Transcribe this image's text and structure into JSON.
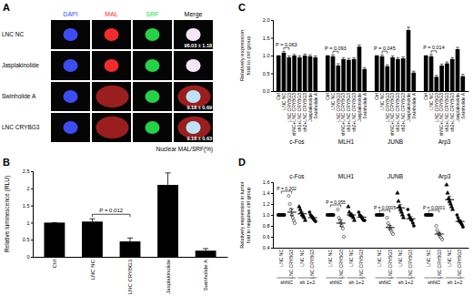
{
  "panel_a": {
    "title": "A",
    "columns": [
      "DAPI",
      "MAL",
      "SRF",
      "Merge"
    ],
    "colors": [
      "#3a4dff",
      "#ff2a2a",
      "#22dd44",
      "#000000"
    ],
    "rows": [
      "LNC NC",
      "Jasplakinolide",
      "Swinholide A",
      "LNC CRYBG3"
    ],
    "annotations": [
      {
        "row": "LNC NC",
        "text": "96.03 ± 1.18"
      },
      {
        "row": "Swinholide A",
        "text": "9.18 ± 0.69"
      },
      {
        "row": "LNC CRYBG3",
        "text": "9.18 ± 0.63"
      }
    ],
    "caption": "Nuclear MAL/SRF(%)"
  },
  "chart_data": [
    {
      "type": "bar",
      "title": "B",
      "categories": [
        "Ctrl",
        "LNC NC",
        "LNC CRYBG3",
        "Jasplakinolide",
        "Swinholide A"
      ],
      "values": [
        1.0,
        1.03,
        0.45,
        2.1,
        0.18
      ],
      "errors": [
        0.0,
        0.08,
        0.1,
        0.35,
        0.06
      ],
      "color": "#000000",
      "ylabel": "Relative luminescence (RLU)",
      "ylim": [
        0,
        2.5
      ],
      "yticks": [
        0,
        0.5,
        1,
        1.5,
        2,
        2.5
      ],
      "annotations": [
        {
          "text": "P = 0.012",
          "between": [
            "LNC NC",
            "LNC CRYBG3"
          ]
        }
      ]
    },
    {
      "type": "bar",
      "title": "C",
      "categories": [
        "c-Fos",
        "MLH1",
        "JUNB",
        "Arp3"
      ],
      "series": [
        {
          "name": "Ctrl",
          "color": "#000000",
          "values": [
            1.0,
            1.0,
            1.0,
            1.0
          ],
          "errors": [
            0.0,
            0.0,
            0.0,
            0.0
          ]
        },
        {
          "name": "LNC NC",
          "color": "#000000",
          "values": [
            1.08,
            0.98,
            0.98,
            0.98
          ],
          "errors": [
            0.04,
            0.04,
            0.04,
            0.05
          ]
        },
        {
          "name": "LNC CRYBG3",
          "color": "#000000",
          "values": [
            0.95,
            0.72,
            0.7,
            0.4
          ],
          "errors": [
            0.04,
            0.05,
            0.04,
            0.04
          ]
        },
        {
          "name": "shNC+LNC CRYBG3",
          "color": "#000000",
          "values": [
            1.0,
            0.9,
            0.95,
            0.72
          ],
          "errors": [
            0.03,
            0.04,
            0.04,
            0.04
          ]
        },
        {
          "name": "sh1+LNC CRYBG3",
          "color": "#000000",
          "values": [
            0.95,
            0.88,
            0.9,
            0.78
          ],
          "errors": [
            0.04,
            0.04,
            0.04,
            0.04
          ]
        },
        {
          "name": "sh2+LNC CRYBG3",
          "color": "#000000",
          "values": [
            1.0,
            0.9,
            0.92,
            0.9
          ],
          "errors": [
            0.04,
            0.04,
            0.04,
            0.04
          ]
        },
        {
          "name": "Jasplakinolide",
          "color": "#000000",
          "values": [
            0.98,
            1.25,
            1.72,
            1.18
          ],
          "errors": [
            0.04,
            0.05,
            0.08,
            0.05
          ]
        },
        {
          "name": "Swinholide A",
          "color": "#000000",
          "values": [
            0.95,
            0.62,
            0.52,
            0.42
          ],
          "errors": [
            0.04,
            0.04,
            0.04,
            0.05
          ]
        }
      ],
      "ylabel": [
        "Relatively expression",
        "fold to ctrl group"
      ],
      "ylim": [
        0,
        2
      ],
      "yticks": [
        {
          "value": 0,
          "label": "0.0"
        },
        {
          "value": 0.5,
          "label": "0.5"
        },
        {
          "value": 1,
          "label": "1.0"
        },
        {
          "value": 1.5,
          "label": "1.5"
        },
        {
          "value": 2,
          "label": "2.0"
        }
      ],
      "annotations": [
        {
          "text": "P = 0.063",
          "category": "c-Fos",
          "between": [
            "LNC NC",
            "LNC CRYBG3"
          ]
        },
        {
          "text": "P = 0.093",
          "category": "MLH1",
          "between": [
            "LNC NC",
            "LNC CRYBG3"
          ]
        },
        {
          "text": "P = 0.045",
          "category": "JUNB",
          "between": [
            "LNC NC",
            "LNC CRYBG3"
          ]
        },
        {
          "text": "P = 0.014",
          "category": "Arp3",
          "between": [
            "LNC NC",
            "LNC CRYBG3"
          ]
        }
      ]
    },
    {
      "type": "scatter",
      "title": "D",
      "categories": [
        "LNC NC",
        "LNC CRYBG3",
        "LNC NC",
        "LNC CRYBG3"
      ],
      "subgroups": [
        "shNC",
        "sh 1+2"
      ],
      "series": [
        {
          "name": "c-Fos",
          "values": [
            [
              1,
              1,
              1,
              1,
              1,
              1,
              1
            ],
            [
              1.35,
              1.2,
              1.1,
              1.0,
              0.95,
              0.9,
              0.85
            ],
            [
              1.15,
              1.1,
              1.05,
              1.0,
              0.98,
              0.95,
              0.9
            ],
            [
              1.05,
              1.0,
              0.98,
              0.95,
              0.92,
              0.9,
              0.88
            ]
          ],
          "means": [
            1,
            1.05,
            1.02,
            0.95
          ],
          "errors": [
            0,
            0.06,
            0.03,
            0.02
          ]
        },
        {
          "name": "MLH1",
          "values": [
            [
              1,
              1,
              1,
              1,
              1,
              1,
              1
            ],
            [
              1.1,
              0.95,
              0.9,
              0.85,
              0.8,
              0.75,
              0.6
            ],
            [
              1.15,
              1.05,
              1.0,
              1.0,
              0.98,
              0.95,
              0.9
            ],
            [
              1.05,
              1.0,
              0.98,
              0.95,
              0.92,
              0.9,
              0.9
            ]
          ],
          "means": [
            1,
            0.85,
            1.0,
            0.96
          ],
          "errors": [
            0,
            0.06,
            0.03,
            0.02
          ]
        },
        {
          "name": "JUNB",
          "values": [
            [
              1,
              1,
              1,
              1,
              1,
              1,
              1
            ],
            [
              0.95,
              0.85,
              0.8,
              0.75,
              0.72,
              0.68,
              0.65
            ],
            [
              1.4,
              1.25,
              1.15,
              1.1,
              1.05,
              1.0,
              0.95
            ],
            [
              1.1,
              1.0,
              0.95,
              0.92,
              0.9,
              0.85,
              0.8
            ]
          ],
          "means": [
            1,
            0.77,
            1.13,
            0.93
          ],
          "errors": [
            0,
            0.04,
            0.06,
            0.04
          ]
        },
        {
          "name": "Arp3",
          "values": [
            [
              1,
              1,
              1,
              1,
              1,
              1,
              1
            ],
            [
              0.8,
              0.72,
              0.68,
              0.65,
              0.6,
              0.58,
              0.55
            ],
            [
              1.55,
              1.4,
              1.3,
              1.25,
              1.2,
              1.15,
              1.1
            ],
            [
              1.0,
              0.95,
              0.9,
              0.88,
              0.85,
              0.82,
              0.78
            ]
          ],
          "means": [
            1,
            0.65,
            1.28,
            0.88
          ],
          "errors": [
            0,
            0.03,
            0.06,
            0.03
          ]
        }
      ],
      "ylabel": [
        "Relatively expression in tumor",
        "fold to negative ctrl group"
      ],
      "ylim": [
        0.4,
        1.6
      ],
      "yticks": [
        {
          "value": 0.4,
          "label": "0.4"
        },
        {
          "value": 0.6,
          "label": "0.6"
        },
        {
          "value": 0.8,
          "label": "0.8"
        },
        {
          "value": 1,
          "label": "1.0"
        },
        {
          "value": 1.2,
          "label": "1.2"
        },
        {
          "value": 1.4,
          "label": "1.4"
        },
        {
          "value": 1.6,
          "label": "1.6"
        }
      ],
      "annotations": [
        {
          "text": "P = 0.202",
          "series": "c-Fos",
          "subgroup": "shNC",
          "between": [
            "LNC NC",
            "LNC CRYBG3"
          ]
        },
        {
          "text": "P = 0.055",
          "series": "MLH1",
          "subgroup": "shNC",
          "between": [
            "LNC NC",
            "LNC CRYBG3"
          ]
        },
        {
          "text": "P = 0.0005",
          "series": "JUNB",
          "subgroup": "shNC",
          "between": [
            "LNC NC",
            "LNC CRYBG3"
          ]
        },
        {
          "text": "P = 0.0001",
          "series": "Arp3",
          "subgroup": "shNC",
          "between": [
            "LNC NC",
            "LNC CRYBG3"
          ]
        }
      ]
    }
  ]
}
